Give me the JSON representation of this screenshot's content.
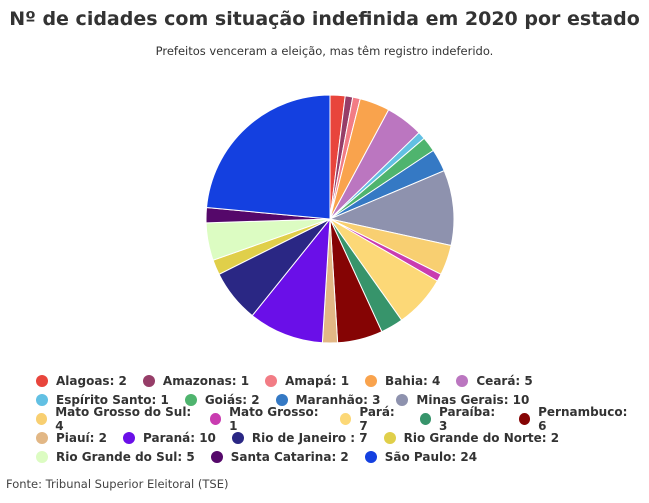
{
  "header": {
    "title": "Nº de cidades com situação indefinida em 2020 por estado",
    "subtitle": "Prefeitos venceram a eleição, mas têm registro indeferido."
  },
  "source": "Fonte: Tribunal Superior Eleitoral (TSE)",
  "chart_data": {
    "type": "pie",
    "title": "Nº de cidades com situação indefinida em 2020 por estado",
    "subtitle": "Prefeitos venceram a eleição, mas têm registro indeferido.",
    "legend_placement": "bottom",
    "slices": [
      {
        "label": "Alagoas: 2",
        "name": "Alagoas",
        "value": 2,
        "color": "#e8453c"
      },
      {
        "label": "Amazonas: 1",
        "name": "Amazonas",
        "value": 1,
        "color": "#963d68"
      },
      {
        "label": "Amapá: 1",
        "name": "Amapá",
        "value": 1,
        "color": "#f27c85"
      },
      {
        "label": "Bahia: 4",
        "name": "Bahia",
        "value": 4,
        "color": "#f9a34d"
      },
      {
        "label": "Ceará: 5",
        "name": "Ceará",
        "value": 5,
        "color": "#bb76c0"
      },
      {
        "label": "Espírito Santo: 1",
        "name": "Espírito Santo",
        "value": 1,
        "color": "#62c0e3"
      },
      {
        "label": "Goiás: 2",
        "name": "Goiás",
        "value": 2,
        "color": "#4fb46e"
      },
      {
        "label": "Maranhão: 3",
        "name": "Maranhão",
        "value": 3,
        "color": "#3579c4"
      },
      {
        "label": "Minas Gerais: 10",
        "name": "Minas Gerais",
        "value": 10,
        "color": "#8e92ae"
      },
      {
        "label": "Mato Grosso do Sul: 4",
        "name": "Mato Grosso do Sul",
        "value": 4,
        "color": "#f8cf71"
      },
      {
        "label": "Mato Grosso: 1",
        "name": "Mato Grosso",
        "value": 1,
        "color": "#c93cb0"
      },
      {
        "label": "Pará: 7",
        "name": "Pará",
        "value": 7,
        "color": "#fcd877"
      },
      {
        "label": "Paraíba: 3",
        "name": "Paraíba",
        "value": 3,
        "color": "#37946b"
      },
      {
        "label": "Pernambuco: 6",
        "name": "Pernambuco",
        "value": 6,
        "color": "#850404"
      },
      {
        "label": "Piauí: 2",
        "name": "Piauí",
        "value": 2,
        "color": "#e2b785"
      },
      {
        "label": "Paraná: 10",
        "name": "Paraná",
        "value": 10,
        "color": "#6a0fe8"
      },
      {
        "label": "Rio de Janeiro : 7",
        "name": "Rio de Janeiro",
        "value": 7,
        "color": "#2a2784"
      },
      {
        "label": "Rio Grande do Norte: 2",
        "name": "Rio Grande do Norte",
        "value": 2,
        "color": "#e0cf4a"
      },
      {
        "label": "Rio Grande do Sul: 5",
        "name": "Rio Grande do Sul",
        "value": 5,
        "color": "#dcfcc2"
      },
      {
        "label": "Santa Catarina: 2",
        "name": "Santa Catarina",
        "value": 2,
        "color": "#55086a"
      },
      {
        "label": "São Paulo: 24",
        "name": "São Paulo",
        "value": 24,
        "color": "#1440e0"
      }
    ]
  }
}
